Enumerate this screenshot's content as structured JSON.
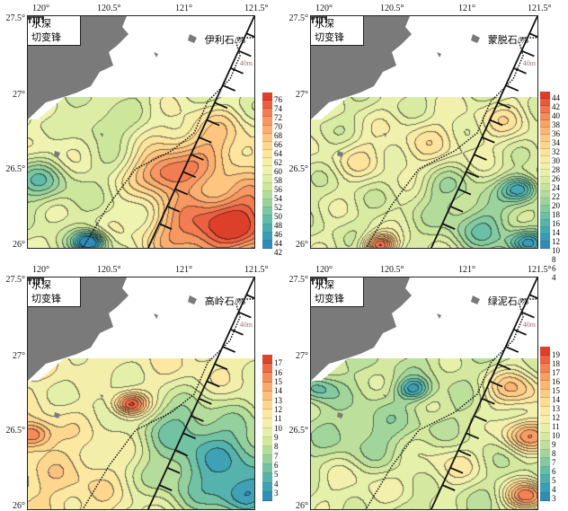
{
  "axes": {
    "lon_labels": [
      "120°",
      "120.5°",
      "121°",
      "121.5°"
    ],
    "lat_labels": [
      "27.5°",
      "27°",
      "26.5°",
      "26°"
    ]
  },
  "legend": {
    "depth_label": "水深",
    "front_label": "切变锋"
  },
  "depth_contour_label": "40m",
  "colormap": [
    "#2b83ba",
    "#3fa3b5",
    "#66bfa6",
    "#9fd49b",
    "#cfe79c",
    "#eef3b0",
    "#fde7a0",
    "#fdc983",
    "#f9a066",
    "#ef6d4a",
    "#d7301f"
  ],
  "panels": [
    {
      "title": "伊利石/%",
      "colorbar_ticks": [
        "76",
        "74",
        "72",
        "70",
        "68",
        "66",
        "64",
        "62",
        "60",
        "58",
        "56",
        "54",
        "52",
        "50",
        "48",
        "46",
        "44",
        "42"
      ]
    },
    {
      "title": "蒙脱石/%",
      "colorbar_ticks": [
        "44",
        "42",
        "40",
        "38",
        "36",
        "34",
        "32",
        "30",
        "28",
        "26",
        "24",
        "22",
        "20",
        "18",
        "16",
        "14",
        "12",
        "10",
        "8",
        "6",
        "4"
      ]
    },
    {
      "title": "高岭石/%",
      "colorbar_ticks": [
        "17",
        "16",
        "15",
        "14",
        "13",
        "12",
        "11",
        "10",
        "9",
        "8",
        "7",
        "6",
        "5",
        "4",
        "3"
      ]
    },
    {
      "title": "绿泥石/%",
      "colorbar_ticks": [
        "19",
        "18",
        "17",
        "16",
        "15",
        "14",
        "13",
        "12",
        "11",
        "10",
        "9",
        "8",
        "7",
        "6",
        "5",
        "4",
        "3"
      ]
    }
  ]
}
